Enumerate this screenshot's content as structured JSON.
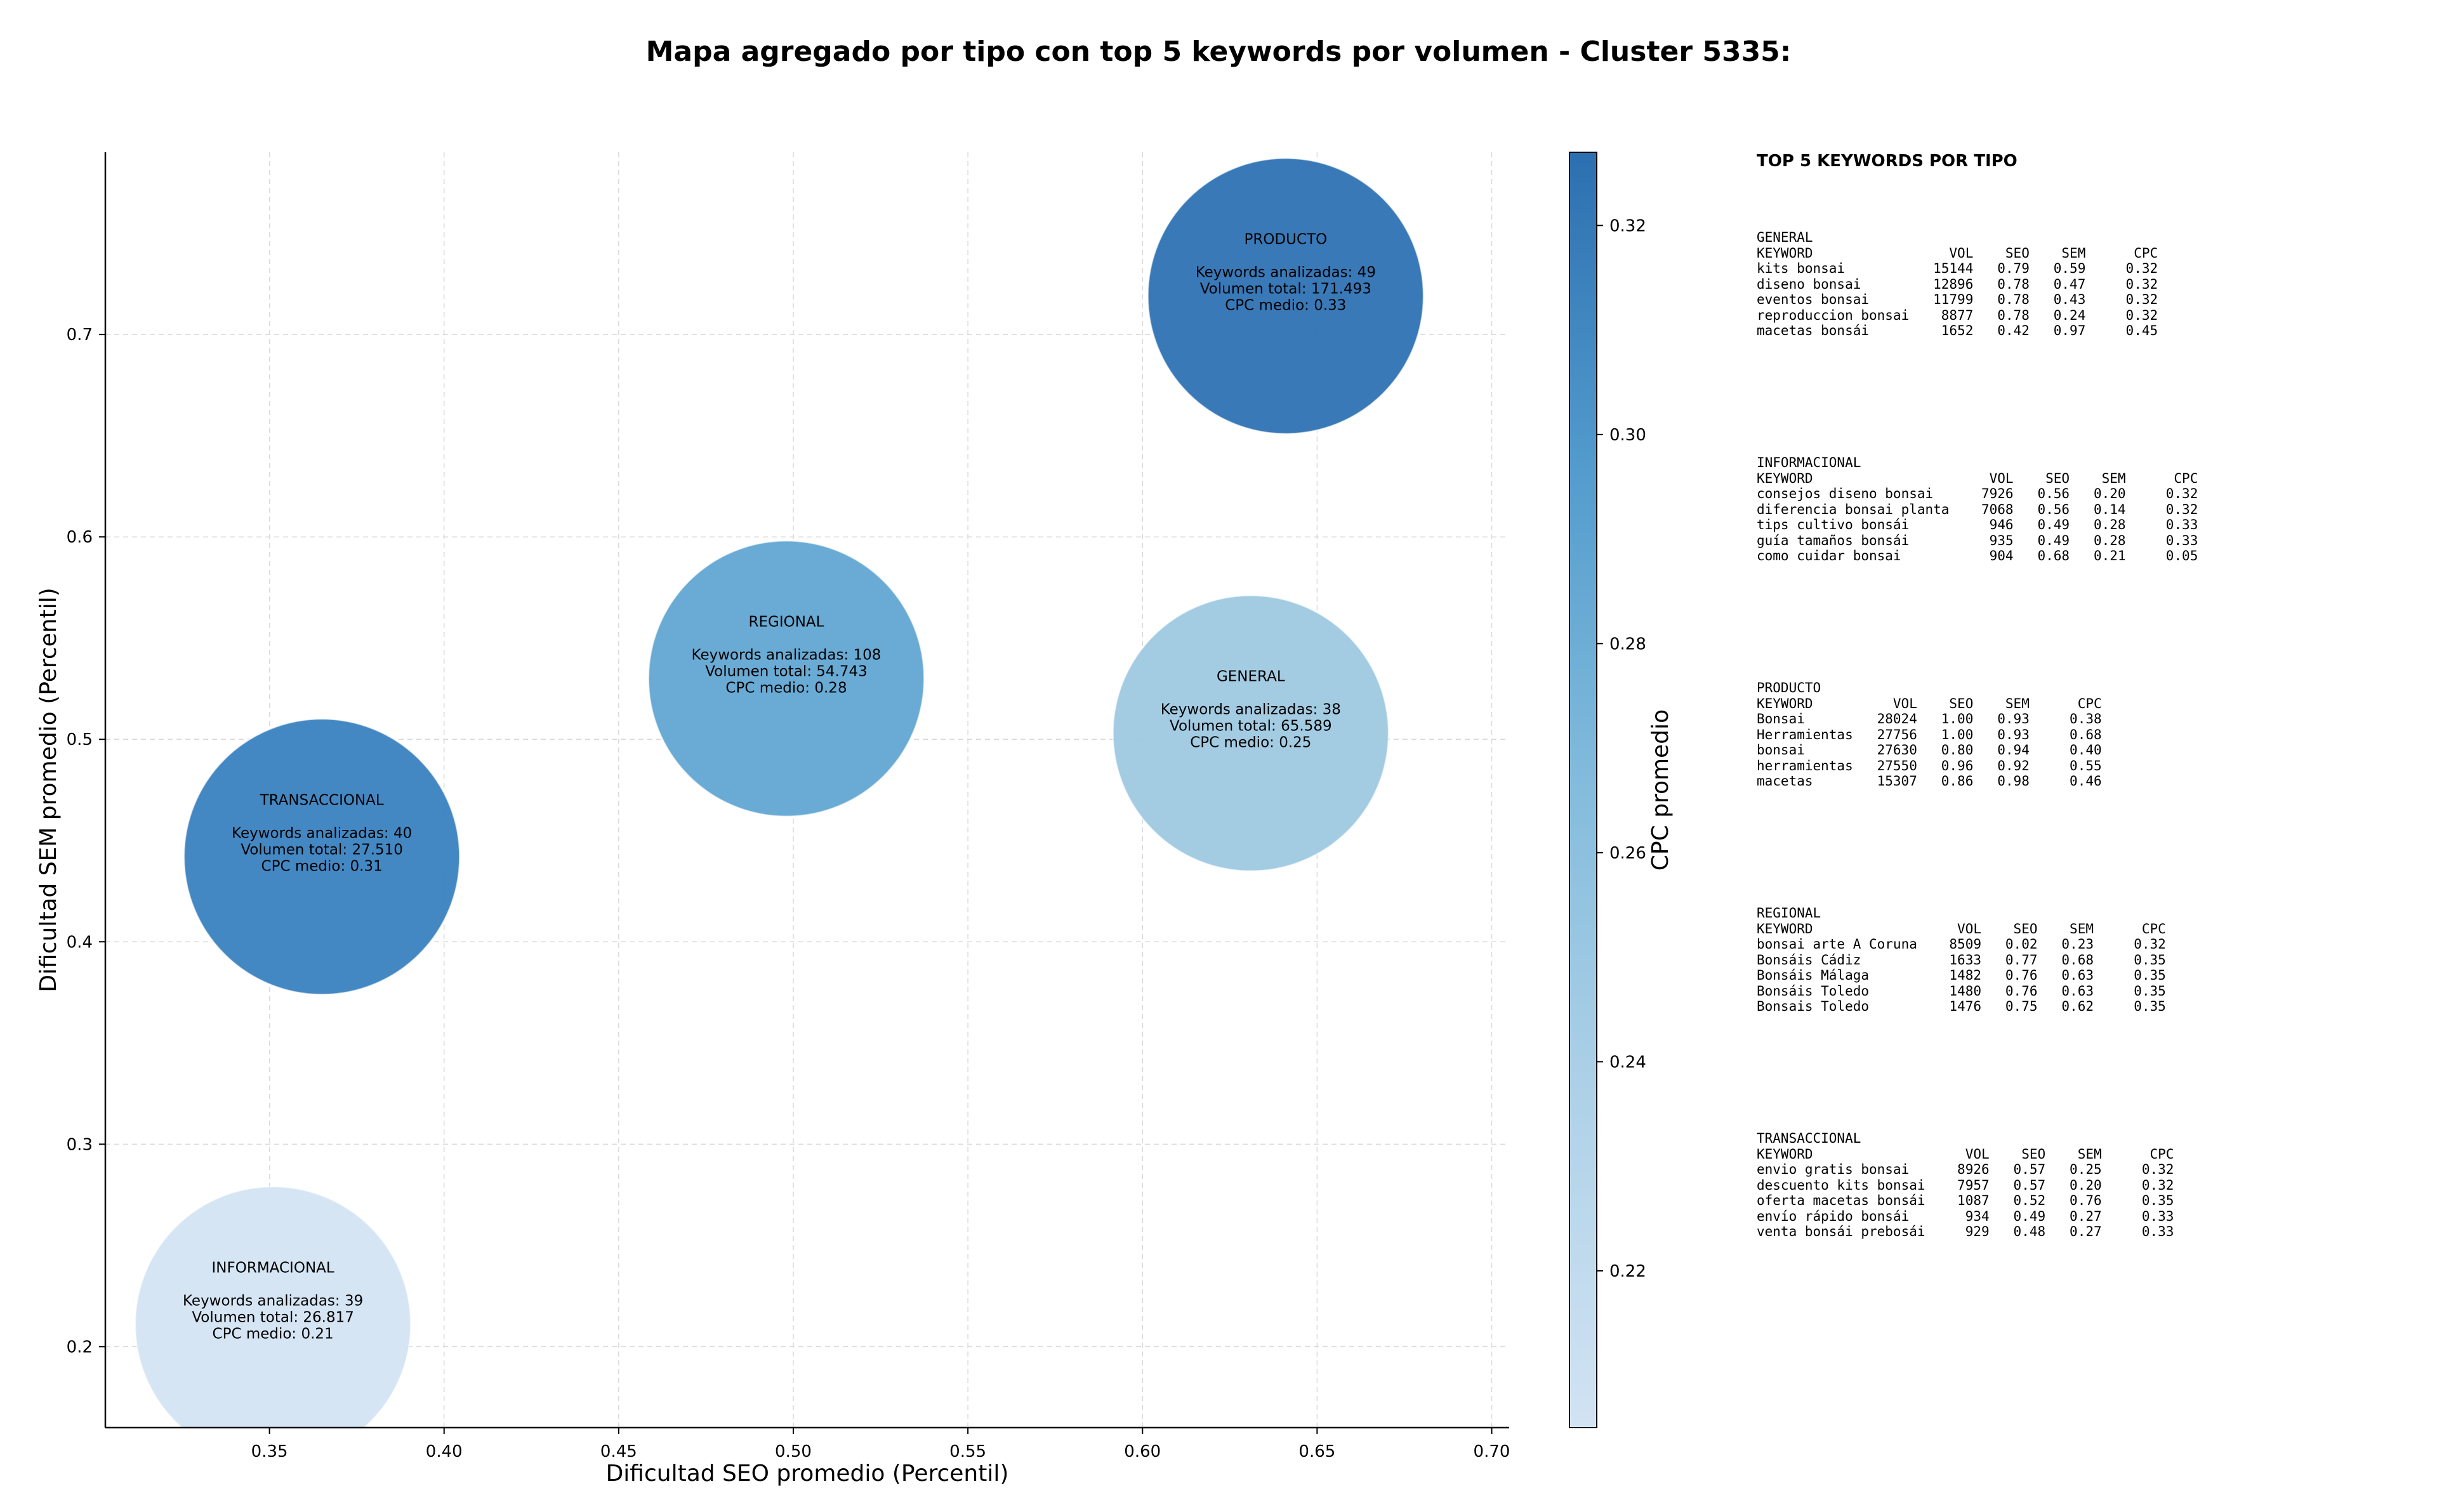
{
  "chart_data": {
    "type": "scatter",
    "title": "Mapa agregado por tipo con top 5 keywords por volumen - Cluster 5335:",
    "xlabel": "Dificultad SEO promedio (Percentil)",
    "ylabel": "Dificultad SEM promedio (Percentil)",
    "xlim": [
      0.303,
      0.705
    ],
    "ylim": [
      0.16,
      0.79
    ],
    "xticks": [
      "0.35",
      "0.40",
      "0.45",
      "0.50",
      "0.55",
      "0.60",
      "0.65",
      "0.70"
    ],
    "yticks": [
      "0.2",
      "0.3",
      "0.4",
      "0.5",
      "0.6",
      "0.7"
    ],
    "grid": true,
    "colorbar": {
      "label": "CPC promedio",
      "min": 0.205,
      "max": 0.327,
      "ticks": [
        "0.22",
        "0.24",
        "0.26",
        "0.28",
        "0.30",
        "0.32"
      ],
      "color_low": "#d2e3f3",
      "color_high": "#2c6fb0"
    },
    "points": [
      {
        "name": "PRODUCTO",
        "x": 0.641,
        "y": 0.719,
        "cpc": 0.33,
        "line1": "Keywords analizadas: 49",
        "line2": "Volumen total: 171.493",
        "line3": "CPC medio: 0.33",
        "color": "#2e72b3"
      },
      {
        "name": "REGIONAL",
        "x": 0.498,
        "y": 0.53,
        "cpc": 0.28,
        "line1": "Keywords analizadas: 108",
        "line2": "Volumen total: 54.743",
        "line3": "CPC medio: 0.28",
        "color": "#61a6d2"
      },
      {
        "name": "GENERAL",
        "x": 0.631,
        "y": 0.503,
        "cpc": 0.25,
        "line1": "Keywords analizadas: 38",
        "line2": "Volumen total: 65.589",
        "line3": "CPC medio: 0.25",
        "color": "#9ec9e2"
      },
      {
        "name": "TRANSACCIONAL",
        "x": 0.365,
        "y": 0.442,
        "cpc": 0.31,
        "line1": "Keywords analizadas: 40",
        "line2": "Volumen total: 27.510",
        "line3": "CPC medio: 0.31",
        "color": "#3a82c0"
      },
      {
        "name": "INFORMACIONAL",
        "x": 0.351,
        "y": 0.211,
        "cpc": 0.21,
        "line1": "Keywords analizadas: 39",
        "line2": "Volumen total: 26.817",
        "line3": "CPC medio: 0.21",
        "color": "#d3e4f3"
      }
    ]
  },
  "side_panel": {
    "heading": "TOP 5 KEYWORDS POR TIPO",
    "sections": [
      {
        "title": "GENERAL",
        "header": [
          "KEYWORD",
          "VOL",
          "SEO",
          "SEM",
          "CPC"
        ],
        "rows": [
          [
            "kits bonsai",
            "15144",
            "0.79",
            "0.59",
            "0.32"
          ],
          [
            "diseno bonsai",
            "12896",
            "0.78",
            "0.47",
            "0.32"
          ],
          [
            "eventos bonsai",
            "11799",
            "0.78",
            "0.43",
            "0.32"
          ],
          [
            "reproduccion bonsai",
            "8877",
            "0.78",
            "0.24",
            "0.32"
          ],
          [
            "macetas bonsái",
            "1652",
            "0.42",
            "0.97",
            "0.45"
          ]
        ]
      },
      {
        "title": "INFORMACIONAL",
        "header": [
          "KEYWORD",
          "VOL",
          "SEO",
          "SEM",
          "CPC"
        ],
        "rows": [
          [
            "consejos diseno bonsai",
            "7926",
            "0.56",
            "0.20",
            "0.32"
          ],
          [
            "diferencia bonsai planta",
            "7068",
            "0.56",
            "0.14",
            "0.32"
          ],
          [
            "tips cultivo bonsái",
            "946",
            "0.49",
            "0.28",
            "0.33"
          ],
          [
            "guía tamaños bonsái",
            "935",
            "0.49",
            "0.28",
            "0.33"
          ],
          [
            "como cuidar bonsai",
            "904",
            "0.68",
            "0.21",
            "0.05"
          ]
        ]
      },
      {
        "title": "PRODUCTO",
        "header": [
          "KEYWORD",
          "VOL",
          "SEO",
          "SEM",
          "CPC"
        ],
        "rows": [
          [
            "Bonsai",
            "28024",
            "1.00",
            "0.93",
            "0.38"
          ],
          [
            "Herramientas",
            "27756",
            "1.00",
            "0.93",
            "0.68"
          ],
          [
            "bonsai",
            "27630",
            "0.80",
            "0.94",
            "0.40"
          ],
          [
            "herramientas",
            "27550",
            "0.96",
            "0.92",
            "0.55"
          ],
          [
            "macetas",
            "15307",
            "0.86",
            "0.98",
            "0.46"
          ]
        ]
      },
      {
        "title": "REGIONAL",
        "header": [
          "KEYWORD",
          "VOL",
          "SEO",
          "SEM",
          "CPC"
        ],
        "rows": [
          [
            "bonsai arte A Coruna",
            "8509",
            "0.02",
            "0.23",
            "0.32"
          ],
          [
            "Bonsáis Cádiz",
            "1633",
            "0.77",
            "0.68",
            "0.35"
          ],
          [
            "Bonsáis Málaga",
            "1482",
            "0.76",
            "0.63",
            "0.35"
          ],
          [
            "Bonsáis Toledo",
            "1480",
            "0.76",
            "0.63",
            "0.35"
          ],
          [
            "Bonsais Toledo",
            "1476",
            "0.75",
            "0.62",
            "0.35"
          ]
        ]
      },
      {
        "title": "TRANSACCIONAL",
        "header": [
          "KEYWORD",
          "VOL",
          "SEO",
          "SEM",
          "CPC"
        ],
        "rows": [
          [
            "envio gratis bonsai",
            "8926",
            "0.57",
            "0.25",
            "0.32"
          ],
          [
            "descuento kits bonsai",
            "7957",
            "0.57",
            "0.20",
            "0.32"
          ],
          [
            "oferta macetas bonsái",
            "1087",
            "0.52",
            "0.76",
            "0.35"
          ],
          [
            "envío rápido bonsái",
            "934",
            "0.49",
            "0.27",
            "0.33"
          ],
          [
            "venta bonsái prebosái",
            "929",
            "0.48",
            "0.27",
            "0.33"
          ]
        ]
      }
    ]
  }
}
